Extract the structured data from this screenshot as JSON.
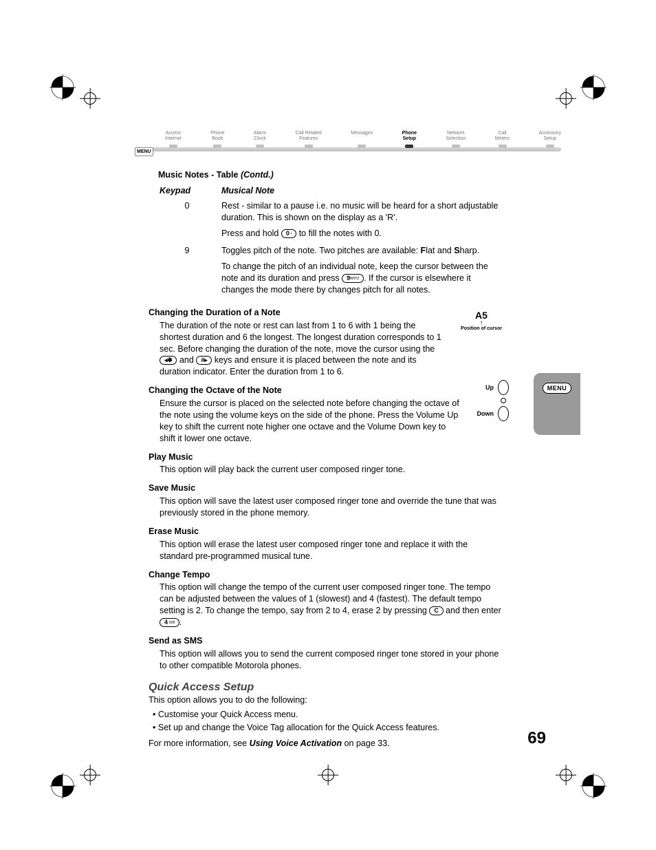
{
  "page_number": "69",
  "nav": {
    "menu_label": "MENU",
    "items": [
      "Access\nInternet",
      "Phone\nBook",
      "Alarm\nClock",
      "Call Related\nFeatures",
      "Messages",
      "Phone\nSetup",
      "Network\nSelection",
      "Call\nMeters",
      "Accessory\nSetup"
    ],
    "active_index": 5
  },
  "table": {
    "title_prefix": "Music Notes - Table ",
    "title_contd": "(Contd.)",
    "col_keypad": "Keypad",
    "col_note": "Musical Note",
    "rows": [
      {
        "key": "0",
        "line1": "Rest - similar to a pause i.e. no music will be heard for a short adjustable duration. This is shown on the display as a 'R'.",
        "line2a": "Press and hold ",
        "line2_key": "0",
        "line2_keysub": "•",
        "line2b": " to fill the notes with 0."
      },
      {
        "key": "9",
        "line1a": "Toggles pitch of the note. Two pitches are available: ",
        "line1_F": "F",
        "line1b": "lat and ",
        "line1_S": "S",
        "line1c": "harp.",
        "line2a": "To change the pitch of an individual note, keep the cursor between the note and its duration and press ",
        "line2_key": "9",
        "line2_keysub": "WXYZ",
        "line2b": ". If the cursor is elsewhere it changes the mode there by changes pitch for all notes."
      }
    ]
  },
  "sections": {
    "duration": {
      "heading": "Changing the Duration of a Note",
      "body_a": "The duration of the note or rest can last from 1 to 6 with 1 being the shortest duration and 6 the longest. The longest duration corresponds to 1 sec. Before changing the duration of the note, move the cursor using the ",
      "key1": "◂✱",
      "mid": " and ",
      "key2": "#▸",
      "body_b": " keys and ensure it is placed between the note and its duration indicator. Enter the duration from 1 to 6."
    },
    "octave": {
      "heading": "Changing the Octave of the Note",
      "body": "Ensure the cursor is placed on the selected note before changing the octave of the note using the volume keys on the side of the phone. Press the Volume Up key to shift the current note higher one octave and the Volume Down key to shift it lower one octave."
    },
    "play": {
      "heading": "Play Music",
      "body": "This option will play back the current user composed ringer tone."
    },
    "save": {
      "heading": "Save Music",
      "body": "This option will save the latest user composed ringer tone and override the tune that was previously stored in the phone memory."
    },
    "erase": {
      "heading": "Erase Music",
      "body": "This option will erase the latest user composed ringer tone and replace it with the standard pre-programmed musical tune."
    },
    "tempo": {
      "heading": "Change Tempo",
      "body_a": "This option will change the tempo of the current user composed ringer tone. The tempo can be adjusted between the values of 1 (slowest) and 4 (fastest). The default tempo setting is 2. To change the tempo, say from 2 to 4, erase 2 by pressing ",
      "key_c": "C",
      "mid": " and then enter ",
      "key_4": "4",
      "key_4sub": "GHI",
      "body_b": "."
    },
    "sms": {
      "heading": "Send as SMS",
      "body": "This option will allows you to send the current composed ringer tone stored in your phone to other compatible Motorola phones."
    }
  },
  "qas": {
    "heading": "Quick Access Setup",
    "intro": "This option allows you to do the following:",
    "bullets": [
      "Customise your Quick Access menu.",
      "Set up and change the Voice Tag allocation for the Quick Access features."
    ],
    "outro_a": "For more information, see ",
    "outro_ref": "Using Voice Activation",
    "outro_b": " on page 33."
  },
  "cursor_callout": {
    "note": "A5",
    "caption": "Position of cursor"
  },
  "vol": {
    "up": "Up",
    "down": "Down"
  },
  "thumb_tab": {
    "label": "MENU"
  },
  "regmark_svg_defs": true
}
